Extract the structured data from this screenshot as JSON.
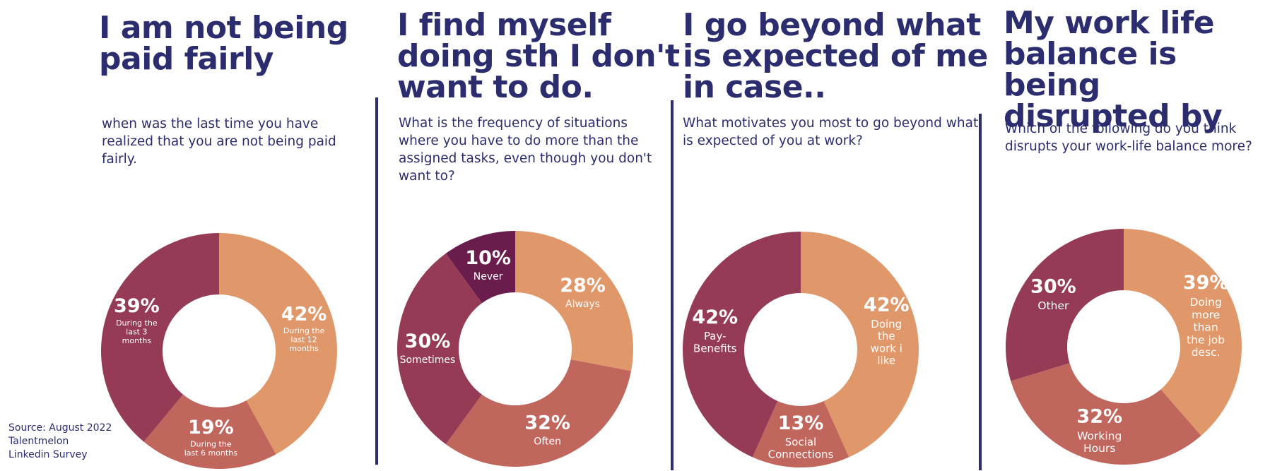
{
  "colors": {
    "navy": "#2b2d6e",
    "maroon": "#963b55",
    "peach": "#e0976a",
    "rose": "#c0665c",
    "plum": "#6a1d4c"
  },
  "source_note": "Source: August 2022\nTalentmelon\nLinkedin Survey",
  "panels": [
    {
      "title": "I am not being\npaid fairly",
      "question": "when was the last time you have realized that you are not being paid fairly."
    },
    {
      "title": "I find myself\ndoing sth I don't\nwant to do.",
      "question": "What is the frequency of situations where you have to do more than the assigned tasks, even though you don't want to?"
    },
    {
      "title": "I go beyond what\nis expected of me\nin case..",
      "question": "What motivates you most to go beyond what is expected of you at work?"
    },
    {
      "title": "My work life\nbalance is being\ndisrupted by",
      "question": "Which of the following do you think disrupts your work-life balance more?"
    }
  ],
  "chart_data": [
    {
      "type": "pie",
      "donut": true,
      "title": "I am not being paid fairly",
      "categories": [
        "During the last 12 months",
        "During the last 6 months",
        "During the last 3 months"
      ],
      "values": [
        42,
        19,
        39
      ],
      "value_labels": [
        "42%",
        "19%",
        "39%"
      ],
      "colors": [
        "#e0976a",
        "#c0665c",
        "#963b55"
      ]
    },
    {
      "type": "pie",
      "donut": true,
      "title": "I find myself doing sth I don't want to do.",
      "categories": [
        "Always",
        "Often",
        "Sometimes",
        "Never"
      ],
      "values": [
        28,
        32,
        30,
        10
      ],
      "value_labels": [
        "28%",
        "32%",
        "30%",
        "10%"
      ],
      "colors": [
        "#e0976a",
        "#c0665c",
        "#963b55",
        "#6a1d4c"
      ]
    },
    {
      "type": "pie",
      "donut": true,
      "title": "I go beyond what is expected of me in case..",
      "categories": [
        "Doing the work i like",
        "Social Connections",
        "Pay-Benefits"
      ],
      "values": [
        42,
        13,
        42
      ],
      "value_labels": [
        "42%",
        "13%",
        "42%"
      ],
      "colors": [
        "#e0976a",
        "#c0665c",
        "#963b55"
      ]
    },
    {
      "type": "pie",
      "donut": true,
      "title": "My work life balance is being disrupted by",
      "categories": [
        "Doing more than the job desc.",
        "Working Hours",
        "Other"
      ],
      "values": [
        39,
        32,
        30
      ],
      "value_labels": [
        "39%",
        "32%",
        "30%"
      ],
      "colors": [
        "#e0976a",
        "#c0665c",
        "#963b55"
      ]
    }
  ]
}
